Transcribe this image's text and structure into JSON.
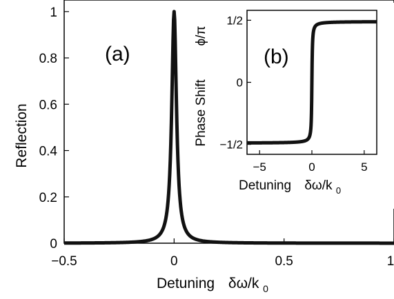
{
  "chart_data": [
    {
      "panel": "(a)",
      "type": "line",
      "xlabel": "Detuning  δω/k0",
      "ylabel": "Reflection",
      "xlim": [
        -0.5,
        1
      ],
      "ylim": [
        0,
        1.05
      ],
      "xticks": [
        "−0.5",
        "0",
        "0.5",
        "1"
      ],
      "yticks": [
        "0",
        "0.2",
        "0.4",
        "0.6",
        "0.8",
        "1"
      ],
      "x_sample": [
        -0.5,
        -0.3,
        -0.15,
        -0.1,
        -0.05,
        -0.03,
        -0.02,
        -0.01,
        0,
        0.01,
        0.02,
        0.03,
        0.05,
        0.1,
        0.15,
        0.3,
        0.5,
        1.0
      ],
      "values": [
        0.0025,
        0.007,
        0.027,
        0.059,
        0.2,
        0.41,
        0.61,
        0.86,
        1.0,
        0.86,
        0.61,
        0.41,
        0.2,
        0.059,
        0.027,
        0.007,
        0.0025,
        0.0006
      ],
      "grid": false
    },
    {
      "panel": "(b)",
      "type": "line",
      "xlabel": "Detuning  δω/k0",
      "ylabel": "Phase Shift  ϕ/π",
      "xlim": [
        -6.2,
        6.2
      ],
      "ylim": [
        -0.58,
        0.58
      ],
      "xticks": [
        "−5",
        "0",
        "5"
      ],
      "yticks": [
        "−1/2",
        "0",
        "1/2"
      ],
      "x_sample": [
        -6.2,
        -2,
        -1,
        -0.5,
        -0.3,
        -0.2,
        -0.1,
        -0.05,
        0,
        0.05,
        0.1,
        0.2,
        0.3,
        0.5,
        1,
        2,
        6.2
      ],
      "values": [
        -0.49,
        -0.485,
        -0.47,
        -0.44,
        -0.41,
        -0.37,
        -0.29,
        -0.19,
        0,
        0.19,
        0.29,
        0.37,
        0.41,
        0.44,
        0.47,
        0.485,
        0.49
      ],
      "grid": false
    }
  ],
  "labels": {
    "panel_a": "(a)",
    "panel_b": "(b)",
    "a_ylabel": "Reflection",
    "a_xlabel_word": "Detuning",
    "a_xlabel_symbol": "δω/k",
    "a_xlabel_sub": "0",
    "b_ylabel": "Phase Shift",
    "b_ylabel_symbol": "ϕ/π",
    "b_xlabel_word": "Detuning",
    "b_xlabel_symbol": "δω/k",
    "b_xlabel_sub": "0"
  },
  "colors": {
    "line": "#111111",
    "axes": "#000000",
    "background": "#ffffff"
  }
}
